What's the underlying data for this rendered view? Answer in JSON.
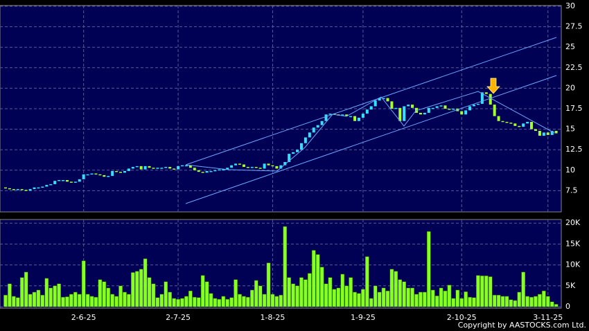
{
  "chart_data": [
    {
      "type": "candlestick",
      "open": [
        7.9,
        7.8,
        7.7,
        7.6,
        7.7,
        7.6,
        7.5,
        7.7,
        7.9,
        7.9,
        8.0,
        8.2,
        8.3,
        8.7,
        8.8,
        8.8,
        8.6,
        8.5,
        8.6,
        8.9,
        9.5,
        9.5,
        9.6,
        9.5,
        9.4,
        9.2,
        9.3,
        9.9,
        9.8,
        9.7,
        9.9,
        10.2,
        10.4,
        10.5,
        10.1,
        10.5,
        10.3,
        10.2,
        10.3,
        10.3,
        10.4,
        10.2,
        10.1,
        10.5,
        10.6,
        10.6,
        10.3,
        10.0,
        9.8,
        9.7,
        9.9,
        9.9,
        10.0,
        10.1,
        10.1,
        10.3,
        10.6,
        10.8,
        10.7,
        10.4,
        10.3,
        10.4,
        10.3,
        10.2,
        10.8,
        10.6,
        10.5,
        10.2,
        10.6,
        11.0,
        12.0,
        12.2,
        12.5,
        13.3,
        14.0,
        14.6,
        15.2,
        15.5,
        16.0,
        16.8,
        16.9,
        16.8,
        16.7,
        16.8,
        16.6,
        16.6,
        16.0,
        16.4,
        16.9,
        17.4,
        17.8,
        18.5,
        18.8,
        18.8,
        18.4,
        17.5,
        17.6,
        16.0,
        17.8,
        18.0,
        17.6,
        17.0,
        16.8,
        17.0,
        17.6,
        17.6,
        17.8,
        17.9,
        17.5,
        17.4,
        17.5,
        17.2,
        16.8,
        17.3,
        17.8,
        18.0,
        18.1,
        19.5,
        19.3,
        18.0,
        16.6,
        16.0,
        15.9,
        15.8,
        15.7,
        15.4,
        15.3,
        15.7,
        15.9,
        15.0,
        14.8,
        14.2,
        14.6,
        14.3,
        14.8
      ],
      "close": [
        7.8,
        7.7,
        7.6,
        7.7,
        7.6,
        7.5,
        7.7,
        7.9,
        7.9,
        8.0,
        8.2,
        8.3,
        8.7,
        8.8,
        8.8,
        8.6,
        8.5,
        8.6,
        8.9,
        9.5,
        9.5,
        9.6,
        9.5,
        9.4,
        9.2,
        9.3,
        9.9,
        9.8,
        9.7,
        9.9,
        10.2,
        10.4,
        10.5,
        10.1,
        10.5,
        10.3,
        10.2,
        10.3,
        10.3,
        10.4,
        10.2,
        10.1,
        10.5,
        10.6,
        10.6,
        10.3,
        10.0,
        9.8,
        9.7,
        9.9,
        9.9,
        10.0,
        10.1,
        10.1,
        10.3,
        10.6,
        10.8,
        10.7,
        10.4,
        10.3,
        10.4,
        10.3,
        10.2,
        10.8,
        10.6,
        10.5,
        10.2,
        10.6,
        11.0,
        12.0,
        12.2,
        12.5,
        13.3,
        14.0,
        14.6,
        15.2,
        15.5,
        16.0,
        16.8,
        16.9,
        16.8,
        16.7,
        16.8,
        16.6,
        16.6,
        16.0,
        16.4,
        16.9,
        17.4,
        17.8,
        18.5,
        18.8,
        18.8,
        18.4,
        17.5,
        17.6,
        16.0,
        17.8,
        18.0,
        17.6,
        17.0,
        16.8,
        17.0,
        17.6,
        17.6,
        17.8,
        17.9,
        17.5,
        17.4,
        17.5,
        17.2,
        16.8,
        17.3,
        17.8,
        18.0,
        18.1,
        19.5,
        19.3,
        18.0,
        16.6,
        16.0,
        15.9,
        15.8,
        15.7,
        15.4,
        15.3,
        15.7,
        15.9,
        15.0,
        14.8,
        14.2,
        14.6,
        14.3,
        14.8,
        14.5
      ],
      "up_color": "#33e0ff",
      "down_color": "#a6ff33",
      "ylim": [
        5,
        30
      ],
      "yticks": [
        7.5,
        10,
        12.5,
        15,
        17.5,
        20,
        22.5,
        25,
        27.5,
        30
      ],
      "grid": true
    },
    {
      "type": "bar",
      "categories": [
        null,
        null,
        null,
        null,
        null,
        null,
        null,
        null,
        null,
        null,
        null,
        null,
        null,
        null,
        null,
        null,
        null,
        null,
        null,
        "2-6-25",
        null,
        null,
        null,
        null,
        null,
        null,
        null,
        null,
        null,
        null,
        null,
        null,
        null,
        null,
        null,
        null,
        null,
        null,
        null,
        null,
        null,
        null,
        "2-7-25",
        null,
        null,
        null,
        null,
        null,
        null,
        null,
        null,
        null,
        null,
        null,
        null,
        null,
        null,
        null,
        null,
        null,
        null,
        null,
        null,
        null,
        null,
        "1-8-25",
        null,
        null,
        null,
        null,
        null,
        null,
        null,
        null,
        null,
        null,
        null,
        null,
        null,
        null,
        null,
        null,
        null,
        null,
        null,
        null,
        null,
        "1-9-25",
        null,
        null,
        null,
        null,
        null,
        null,
        null,
        null,
        null,
        null,
        null,
        null,
        null,
        null,
        null,
        null,
        null,
        null,
        null,
        null,
        null,
        null,
        null,
        "2-10-25",
        null,
        null,
        null,
        null,
        null,
        null,
        null,
        null,
        null,
        null,
        null,
        null,
        null,
        null,
        null,
        null,
        null,
        null,
        null,
        null,
        "3-11-25",
        null,
        null
      ],
      "values": [
        2800,
        5500,
        2500,
        2200,
        7000,
        8300,
        3000,
        3500,
        4000,
        2800,
        6800,
        4500,
        5000,
        5500,
        2300,
        2400,
        3000,
        3500,
        3000,
        11000,
        3000,
        2500,
        2300,
        6500,
        6000,
        4500,
        3000,
        2500,
        5000,
        3500,
        3000,
        8200,
        8500,
        9000,
        11500,
        7000,
        5500,
        2200,
        3000,
        6000,
        3500,
        2000,
        1800,
        2000,
        2500,
        3800,
        2300,
        2200,
        7500,
        6000,
        3200,
        2000,
        1800,
        2500,
        1800,
        2200,
        6500,
        3000,
        2500,
        2300,
        4000,
        6300,
        5000,
        3000,
        10500,
        3000,
        2500,
        2800,
        19200,
        7000,
        5500,
        5000,
        7000,
        6500,
        8000,
        13500,
        12500,
        9500,
        5500,
        7000,
        4200,
        4500,
        7800,
        5000,
        7000,
        3500,
        3200,
        4200,
        12000,
        2000,
        5000,
        3500,
        4500,
        3800,
        9000,
        8500,
        6500,
        6000,
        4500,
        4500,
        3000,
        3500,
        3500,
        18000,
        4000,
        2600,
        4500,
        3800,
        5200,
        2000,
        4000,
        2000,
        3600,
        2300,
        2200,
        7500,
        7400,
        7400,
        7200,
        2800,
        2800,
        2500,
        2500,
        1700,
        1500,
        3500,
        8300,
        2500,
        2300,
        2500,
        3000,
        3800,
        2500,
        1200,
        600
      ],
      "color": "#88ff22",
      "ylim": [
        0,
        20700
      ],
      "yticks": [
        0,
        {
          "value": 5000,
          "label": "5K"
        },
        {
          "value": 10000,
          "label": "10K"
        },
        {
          "value": 15000,
          "label": "15K"
        },
        {
          "value": 20000,
          "label": "20K"
        }
      ],
      "grid": true
    }
  ],
  "copyright": "Copyright by AASTOCKS.com Ltd."
}
